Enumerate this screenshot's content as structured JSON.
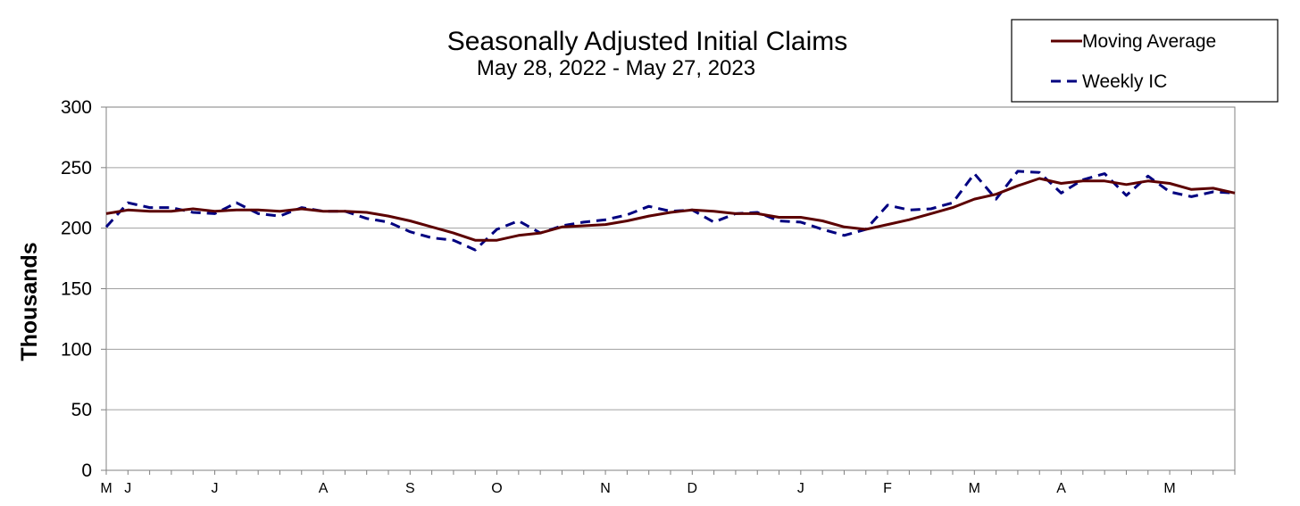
{
  "chart_data": {
    "type": "line",
    "title": "Seasonally Adjusted Initial Claims",
    "subtitle": "May 28, 2022 - May 27, 2023",
    "xlabel": "",
    "ylabel": "Thousands",
    "ylim": [
      0,
      300
    ],
    "yticks": [
      0,
      50,
      100,
      150,
      200,
      250,
      300
    ],
    "grid": true,
    "legend_position": "top-right",
    "xlim": [
      "2022-05-28",
      "2023-05-27"
    ],
    "x_month_labels": [
      {
        "label": "M",
        "date": "2022-05-28"
      },
      {
        "label": "J",
        "date": "2022-06-04"
      },
      {
        "label": "J",
        "date": "2022-07-02"
      },
      {
        "label": "A",
        "date": "2022-08-06"
      },
      {
        "label": "S",
        "date": "2022-09-03"
      },
      {
        "label": "O",
        "date": "2022-10-01"
      },
      {
        "label": "N",
        "date": "2022-11-05"
      },
      {
        "label": "D",
        "date": "2022-12-03"
      },
      {
        "label": "J",
        "date": "2023-01-07"
      },
      {
        "label": "F",
        "date": "2023-02-04"
      },
      {
        "label": "M",
        "date": "2023-03-04"
      },
      {
        "label": "A",
        "date": "2023-04-01"
      },
      {
        "label": "M",
        "date": "2023-05-06"
      }
    ],
    "x": [
      "2022-05-28",
      "2022-06-04",
      "2022-06-11",
      "2022-06-18",
      "2022-06-25",
      "2022-07-02",
      "2022-07-09",
      "2022-07-16",
      "2022-07-23",
      "2022-07-30",
      "2022-08-06",
      "2022-08-13",
      "2022-08-20",
      "2022-08-27",
      "2022-09-03",
      "2022-09-10",
      "2022-09-17",
      "2022-09-24",
      "2022-10-01",
      "2022-10-08",
      "2022-10-15",
      "2022-10-22",
      "2022-10-29",
      "2022-11-05",
      "2022-11-12",
      "2022-11-19",
      "2022-11-26",
      "2022-12-03",
      "2022-12-10",
      "2022-12-17",
      "2022-12-24",
      "2022-12-31",
      "2023-01-07",
      "2023-01-14",
      "2023-01-21",
      "2023-01-28",
      "2023-02-04",
      "2023-02-11",
      "2023-02-18",
      "2023-02-25",
      "2023-03-04",
      "2023-03-11",
      "2023-03-18",
      "2023-03-25",
      "2023-04-01",
      "2023-04-08",
      "2023-04-15",
      "2023-04-22",
      "2023-04-29",
      "2023-05-06",
      "2023-05-13",
      "2023-05-20",
      "2023-05-27"
    ],
    "series": [
      {
        "name": "Moving Average",
        "color": "#5c0000",
        "style": "solid",
        "values": [
          212,
          215,
          214,
          214,
          216,
          214,
          215,
          215,
          214,
          216,
          214,
          214,
          213,
          210,
          206,
          201,
          196,
          190,
          190,
          194,
          196,
          201,
          202,
          203,
          206,
          210,
          213,
          215,
          214,
          212,
          212,
          209,
          209,
          206,
          201,
          199,
          203,
          207,
          212,
          217,
          224,
          228,
          235,
          241,
          237,
          239,
          239,
          236,
          239,
          237,
          232,
          233,
          229
        ]
      },
      {
        "name": "Weekly IC",
        "color": "#000080",
        "style": "dashed",
        "values": [
          201,
          221,
          217,
          217,
          213,
          212,
          221,
          212,
          210,
          217,
          214,
          214,
          208,
          205,
          197,
          192,
          190,
          182,
          199,
          206,
          196,
          202,
          205,
          207,
          211,
          218,
          214,
          215,
          205,
          212,
          213,
          206,
          205,
          199,
          194,
          199,
          219,
          215,
          216,
          221,
          245,
          224,
          247,
          246,
          229,
          240,
          245,
          227,
          243,
          230,
          226,
          230,
          229
        ]
      }
    ]
  }
}
